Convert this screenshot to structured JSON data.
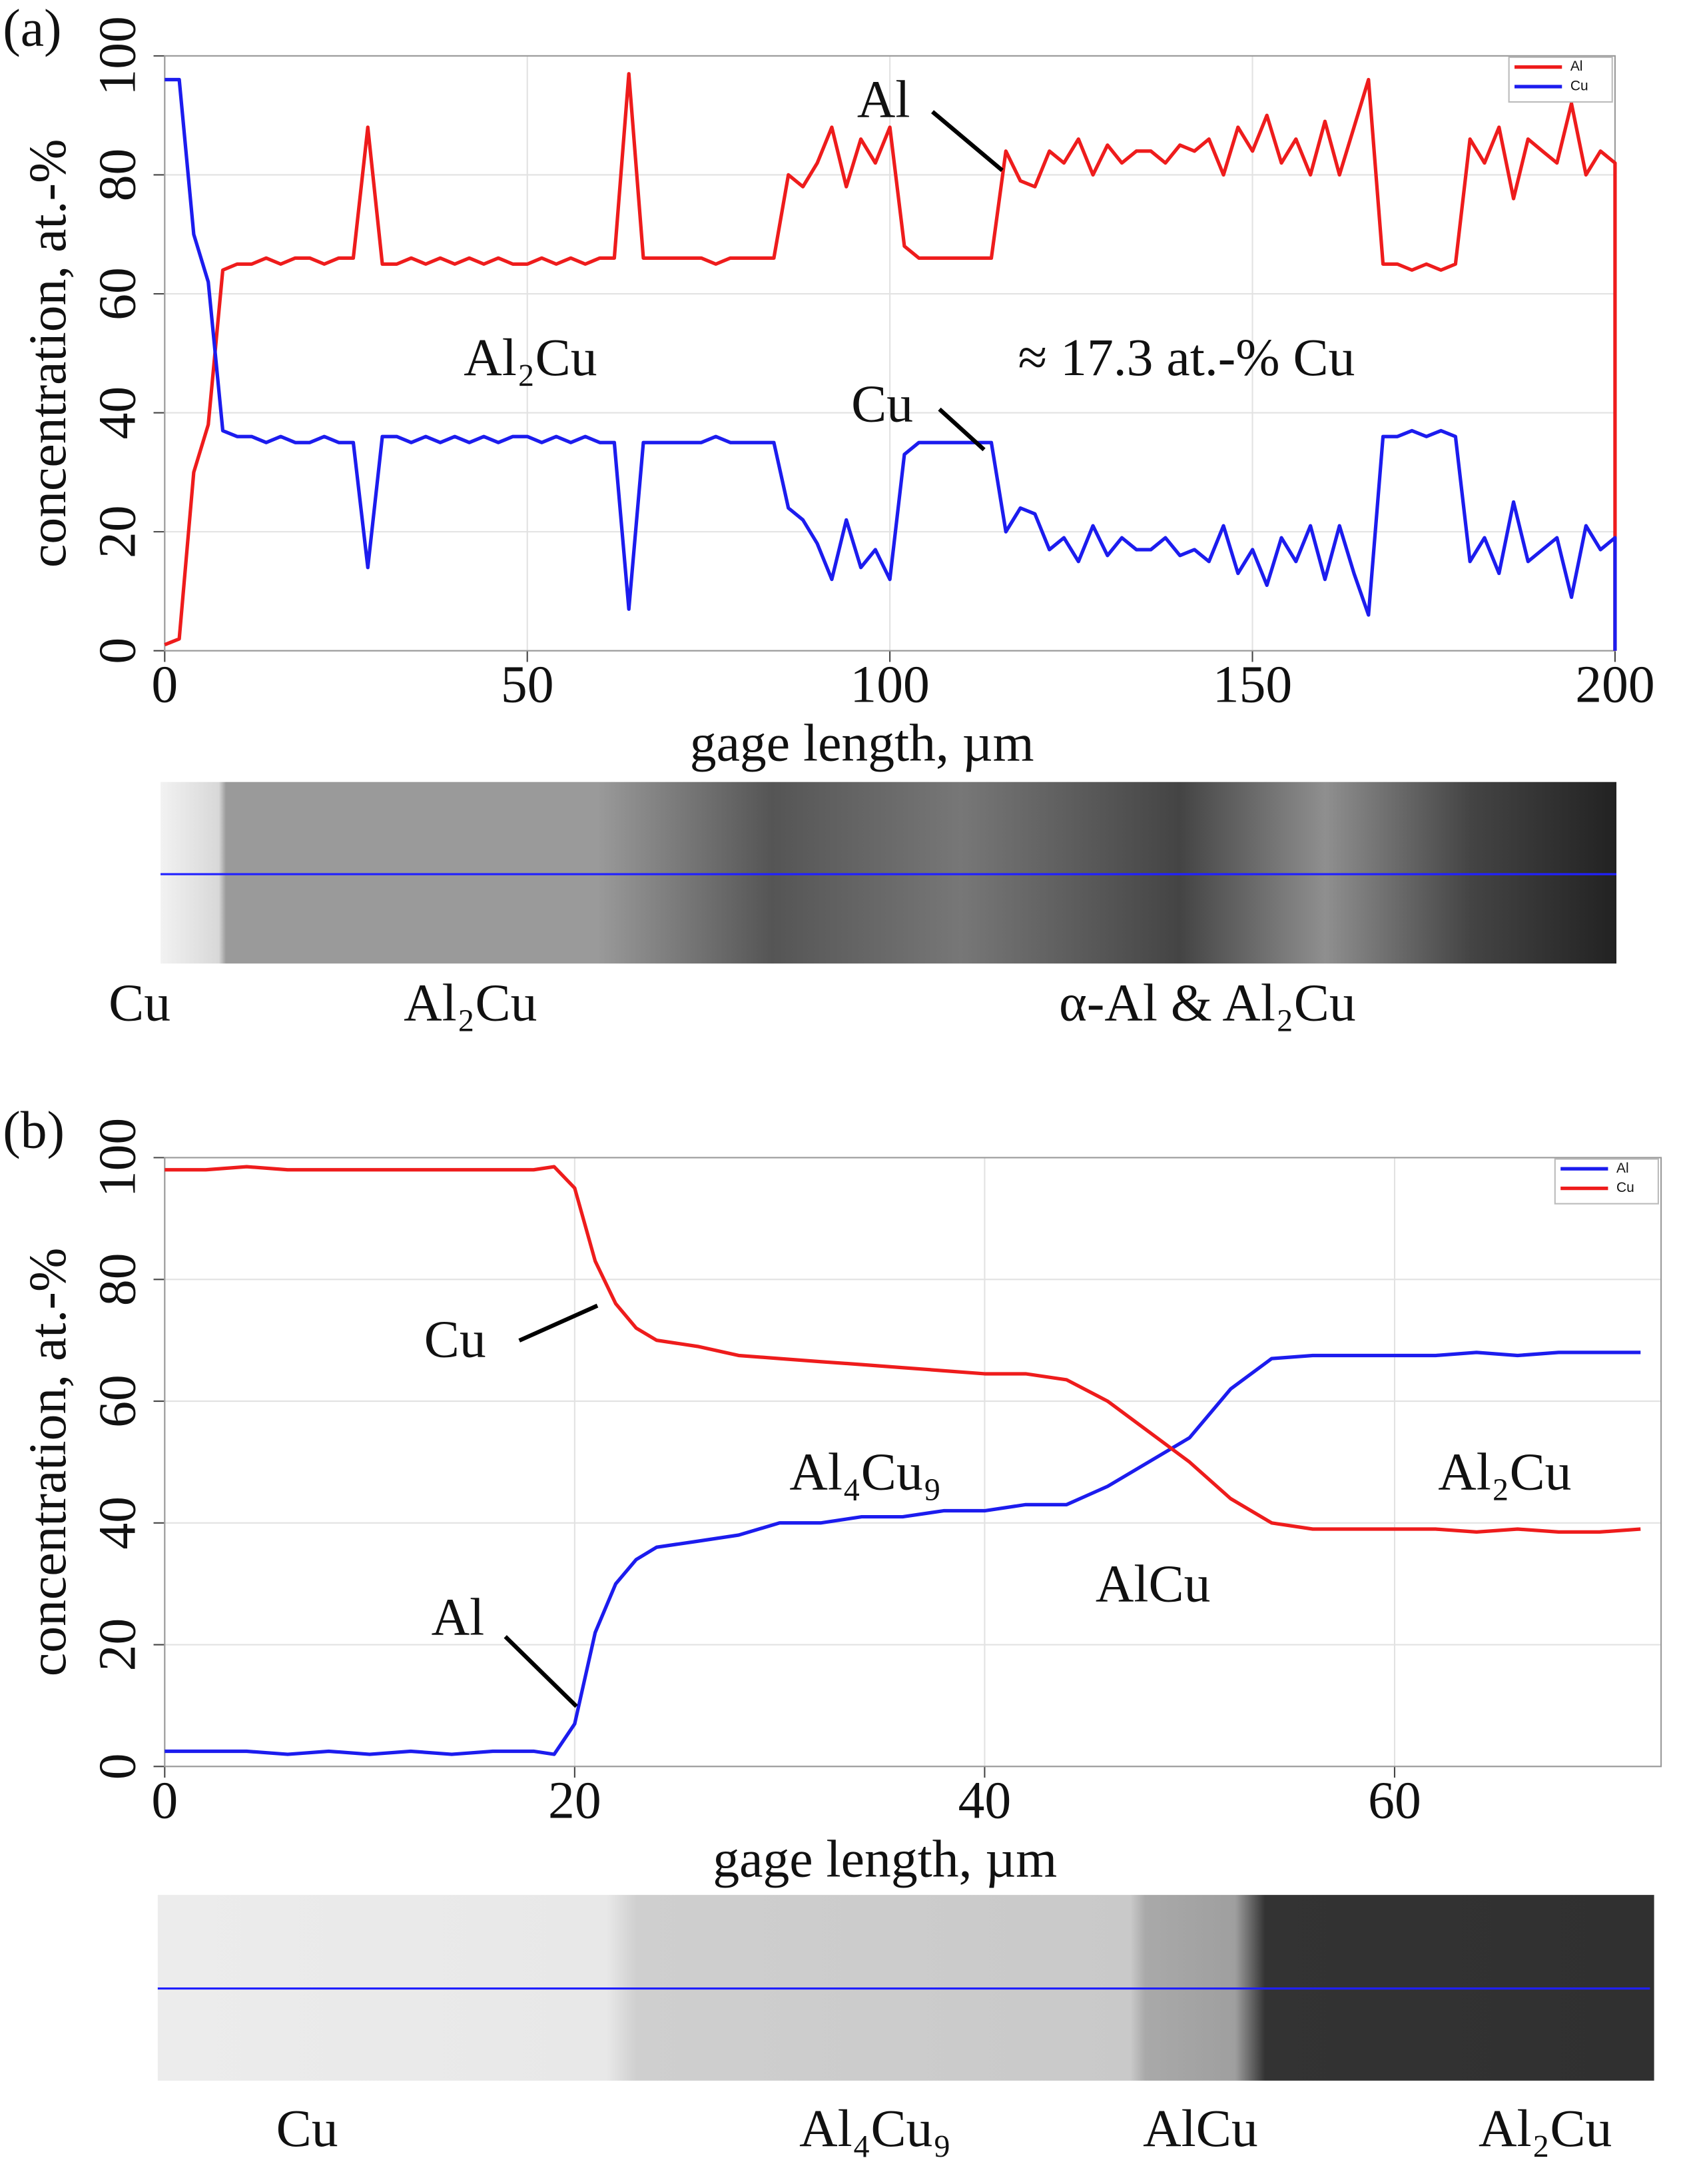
{
  "chart_data": [
    {
      "type": "line",
      "panel": "(a)",
      "xlabel": "gage length, µm",
      "ylabel": "concentration, at.-%",
      "xlim": [
        0,
        200
      ],
      "ylim": [
        0,
        100
      ],
      "xticks": [
        0,
        50,
        100,
        150,
        200
      ],
      "yticks": [
        0,
        20,
        40,
        60,
        80,
        100
      ],
      "grid": true,
      "legend": "upper right",
      "x": [
        0,
        2,
        4,
        6,
        8,
        10,
        12,
        14,
        16,
        18,
        20,
        22,
        24,
        26,
        28,
        30,
        32,
        34,
        36,
        38,
        40,
        42,
        44,
        46,
        48,
        50,
        52,
        54,
        56,
        58,
        60,
        62,
        64,
        66,
        68,
        70,
        72,
        74,
        76,
        78,
        80,
        82,
        84,
        86,
        88,
        90,
        92,
        94,
        96,
        98,
        100,
        102,
        104,
        106,
        108,
        110,
        112,
        114,
        116,
        118,
        120,
        122,
        124,
        126,
        128,
        130,
        132,
        134,
        136,
        138,
        140,
        142,
        144,
        146,
        148,
        150,
        152,
        154,
        156,
        158,
        160,
        162,
        164,
        166,
        168,
        170,
        172,
        174,
        176,
        178,
        180,
        182,
        184,
        186,
        188,
        190,
        192,
        194,
        196,
        198,
        200,
        200
      ],
      "series": [
        {
          "name": "Al",
          "color": "#ee1c1c",
          "values": [
            1,
            2,
            30,
            38,
            64,
            65,
            65,
            66,
            65,
            66,
            66,
            65,
            66,
            66,
            88,
            65,
            65,
            66,
            65,
            66,
            65,
            66,
            65,
            66,
            65,
            65,
            66,
            65,
            66,
            65,
            66,
            66,
            97,
            66,
            66,
            66,
            66,
            66,
            65,
            66,
            66,
            66,
            66,
            80,
            78,
            82,
            88,
            78,
            86,
            82,
            88,
            68,
            66,
            66,
            66,
            66,
            66,
            66,
            84,
            79,
            78,
            84,
            82,
            86,
            80,
            85,
            82,
            84,
            84,
            82,
            85,
            84,
            86,
            80,
            88,
            84,
            90,
            82,
            86,
            80,
            89,
            80,
            88,
            96,
            65,
            65,
            64,
            65,
            64,
            65,
            86,
            82,
            88,
            76,
            86,
            84,
            82,
            92,
            80,
            84,
            82,
            0
          ]
        },
        {
          "name": "Cu",
          "color": "#1c1cee",
          "values": [
            96,
            96,
            70,
            62,
            37,
            36,
            36,
            35,
            36,
            35,
            35,
            36,
            35,
            35,
            14,
            36,
            36,
            35,
            36,
            35,
            36,
            35,
            36,
            35,
            36,
            36,
            35,
            36,
            35,
            36,
            35,
            35,
            7,
            35,
            35,
            35,
            35,
            35,
            36,
            35,
            35,
            35,
            35,
            24,
            22,
            18,
            12,
            22,
            14,
            17,
            12,
            33,
            35,
            35,
            35,
            35,
            35,
            35,
            20,
            24,
            23,
            17,
            19,
            15,
            21,
            16,
            19,
            17,
            17,
            19,
            16,
            17,
            15,
            21,
            13,
            17,
            11,
            19,
            15,
            21,
            12,
            21,
            13,
            6,
            36,
            36,
            37,
            36,
            37,
            36,
            15,
            19,
            13,
            25,
            15,
            17,
            19,
            9,
            21,
            17,
            19,
            0
          ]
        }
      ],
      "annotations": [
        "Al",
        "Al₂Cu",
        "≈ 17.3 at.-% Cu",
        "Cu"
      ],
      "phase_labels": [
        "Cu",
        "Al₂Cu",
        "α-Al & Al₂Cu"
      ]
    },
    {
      "type": "line",
      "panel": "(b)",
      "xlabel": "gage length, µm",
      "ylabel": "concentration, at.-%",
      "xlim": [
        0,
        73
      ],
      "ylim": [
        0,
        100
      ],
      "xticks": [
        0,
        20,
        40,
        60
      ],
      "yticks": [
        0,
        20,
        40,
        60,
        80,
        100
      ],
      "grid": true,
      "legend": "upper right",
      "x": [
        0,
        2,
        4,
        6,
        8,
        10,
        12,
        14,
        16,
        18,
        19,
        20,
        21,
        22,
        23,
        24,
        26,
        28,
        30,
        32,
        34,
        36,
        38,
        40,
        42,
        44,
        46,
        48,
        50,
        52,
        54,
        56,
        58,
        60,
        62,
        64,
        66,
        68,
        70,
        72
      ],
      "series": [
        {
          "name": "Al",
          "color": "#1c1cee",
          "values": [
            2.5,
            2.5,
            2.5,
            2,
            2.5,
            2,
            2.5,
            2,
            2.5,
            2.5,
            2,
            7,
            22,
            30,
            34,
            36,
            37,
            38,
            40,
            40,
            41,
            41,
            42,
            42,
            43,
            43,
            46,
            50,
            54,
            62,
            67,
            67.5,
            67.5,
            67.5,
            67.5,
            68,
            67.5,
            68,
            68,
            68
          ]
        },
        {
          "name": "Cu",
          "color": "#ee1c1c",
          "values": [
            98,
            98,
            98.5,
            98,
            98,
            98,
            98,
            98,
            98,
            98,
            98.5,
            95,
            83,
            76,
            72,
            70,
            69,
            67.5,
            67,
            66.5,
            66,
            65.5,
            65,
            64.5,
            64.5,
            63.5,
            60,
            55,
            50,
            44,
            40,
            39,
            39,
            39,
            39,
            38.5,
            39,
            38.5,
            38.5,
            39
          ]
        }
      ],
      "annotations": [
        "Cu",
        "Al₄Cu₉",
        "Al₂Cu",
        "AlCu",
        "Al"
      ],
      "phase_labels": [
        "Cu",
        "Al₄Cu₉",
        "AlCu",
        "Al₂Cu"
      ]
    }
  ]
}
